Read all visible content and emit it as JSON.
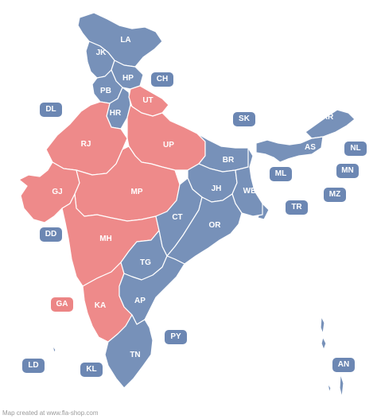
{
  "colors": {
    "highlight": "#ee8a8a",
    "default": "#7791b9"
  },
  "credit": "Map created at www.fla-shop.com",
  "states": [
    {
      "code": "LA",
      "group": "default"
    },
    {
      "code": "JK",
      "group": "default"
    },
    {
      "code": "HP",
      "group": "default"
    },
    {
      "code": "PB",
      "group": "default"
    },
    {
      "code": "HR",
      "group": "default"
    },
    {
      "code": "UT",
      "group": "highlight"
    },
    {
      "code": "RJ",
      "group": "highlight"
    },
    {
      "code": "UP",
      "group": "highlight"
    },
    {
      "code": "GJ",
      "group": "highlight"
    },
    {
      "code": "MP",
      "group": "highlight"
    },
    {
      "code": "MH",
      "group": "highlight"
    },
    {
      "code": "KA",
      "group": "highlight"
    },
    {
      "code": "BR",
      "group": "default"
    },
    {
      "code": "JH",
      "group": "default"
    },
    {
      "code": "WB",
      "group": "default"
    },
    {
      "code": "CT",
      "group": "default"
    },
    {
      "code": "OR",
      "group": "default"
    },
    {
      "code": "TG",
      "group": "default"
    },
    {
      "code": "AP",
      "group": "default"
    },
    {
      "code": "TN",
      "group": "default"
    },
    {
      "code": "AR",
      "group": "default"
    },
    {
      "code": "AS",
      "group": "default"
    }
  ],
  "small_regions": [
    {
      "code": "CH",
      "group": "default"
    },
    {
      "code": "DL",
      "group": "default"
    },
    {
      "code": "SK",
      "group": "default"
    },
    {
      "code": "NL",
      "group": "default"
    },
    {
      "code": "ML",
      "group": "default"
    },
    {
      "code": "MN",
      "group": "default"
    },
    {
      "code": "MZ",
      "group": "default"
    },
    {
      "code": "TR",
      "group": "default"
    },
    {
      "code": "DD",
      "group": "default"
    },
    {
      "code": "GA",
      "group": "highlight"
    },
    {
      "code": "PY",
      "group": "default"
    },
    {
      "code": "LD",
      "group": "default"
    },
    {
      "code": "KL",
      "group": "default"
    },
    {
      "code": "AN",
      "group": "default"
    }
  ]
}
